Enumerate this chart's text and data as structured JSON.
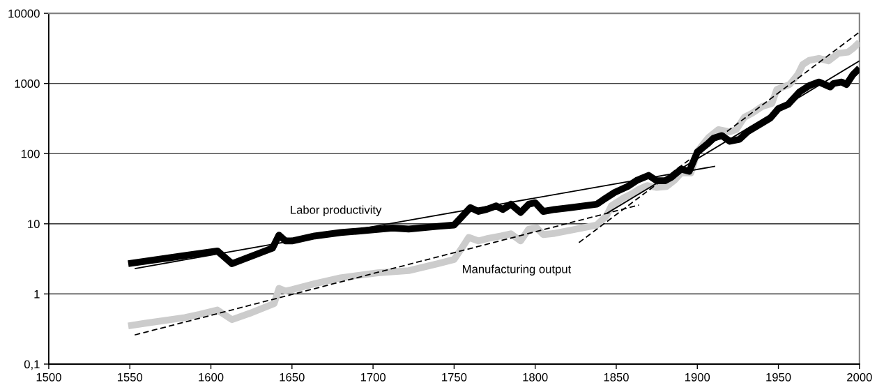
{
  "chart_data": {
    "type": "line",
    "log": "y",
    "grid": "y",
    "xlim": [
      1500,
      2000
    ],
    "xticks": [
      1500,
      1550,
      1600,
      1650,
      1700,
      1750,
      1800,
      1850,
      1900,
      1950,
      2000
    ],
    "ylim": [
      0.1,
      10000
    ],
    "yticks": [
      {
        "value": 0.1,
        "label": "0,1"
      },
      1,
      10,
      100,
      1000,
      10000
    ],
    "series": [
      {
        "name": "Manufacturing output",
        "color": "#cccccc",
        "x": [
          1549,
          1559,
          1584,
          1593,
          1604,
          1613,
          1624,
          1639,
          1642,
          1646,
          1650,
          1664,
          1680,
          1692,
          1703,
          1722,
          1740,
          1750,
          1755,
          1759,
          1765,
          1771,
          1779,
          1785,
          1791,
          1796,
          1801,
          1805,
          1812,
          1822,
          1838,
          1844,
          1847,
          1854,
          1860,
          1864,
          1869,
          1875,
          1881,
          1886,
          1890,
          1896,
          1900,
          1904,
          1907,
          1913,
          1920,
          1924,
          1929,
          1934,
          1940,
          1946,
          1949,
          1957,
          1962,
          1965,
          1969,
          1975,
          1981,
          1987,
          1993,
          1996,
          2000
        ],
        "values": [
          0.35,
          0.38,
          0.46,
          0.51,
          0.59,
          0.43,
          0.53,
          0.73,
          1.2,
          1.1,
          1.15,
          1.4,
          1.7,
          1.85,
          2.0,
          2.15,
          2.7,
          3.1,
          4.6,
          6.4,
          5.7,
          6.2,
          6.7,
          7.2,
          5.7,
          8.4,
          8.7,
          7.0,
          7.3,
          8.1,
          9.6,
          13,
          18,
          23,
          27,
          31,
          35,
          33,
          34,
          42,
          53,
          53,
          107,
          140,
          170,
          220,
          205,
          220,
          330,
          380,
          470,
          520,
          820,
          970,
          1340,
          1860,
          2140,
          2280,
          2100,
          2690,
          2800,
          3160,
          3880
        ]
      },
      {
        "name": "Labor productivity",
        "color": "#000000",
        "x": [
          1549,
          1604,
          1613,
          1638,
          1642,
          1646,
          1650,
          1664,
          1680,
          1692,
          1712,
          1722,
          1740,
          1750,
          1760,
          1765,
          1770,
          1776,
          1780,
          1785,
          1791,
          1796,
          1800,
          1805,
          1812,
          1822,
          1838,
          1842,
          1849,
          1857,
          1863,
          1870,
          1875,
          1880,
          1884,
          1890,
          1895,
          1900,
          1906,
          1910,
          1915,
          1920,
          1926,
          1931,
          1940,
          1945,
          1950,
          1956,
          1963,
          1969,
          1975,
          1982,
          1984,
          1989,
          1992,
          1996,
          2000
        ],
        "values": [
          2.7,
          4.1,
          2.7,
          4.5,
          6.9,
          5.7,
          5.7,
          6.7,
          7.5,
          7.9,
          8.7,
          8.4,
          9.2,
          9.6,
          17,
          15,
          16,
          18,
          16,
          19,
          14.5,
          19,
          20,
          15,
          16,
          17,
          19,
          22,
          28,
          34,
          42,
          49,
          41,
          41,
          46,
          60,
          56,
          105,
          136,
          166,
          181,
          150,
          160,
          205,
          273,
          321,
          438,
          504,
          757,
          929,
          1050,
          892,
          1000,
          1050,
          968,
          1340,
          1650
        ]
      },
      {
        "type": "line",
        "color": "#000000",
        "line_style": "solid",
        "x": [
          1553,
          1911
        ],
        "values": [
          2.3,
          66
        ]
      },
      {
        "type": "line",
        "color": "#000000",
        "line_style": "solid",
        "x": [
          1844,
          2000
        ],
        "values": [
          14,
          2100
        ]
      },
      {
        "type": "line",
        "color": "#000000",
        "line_style": "dashed",
        "x": [
          1553,
          1864
        ],
        "values": [
          0.26,
          18.5
        ]
      },
      {
        "type": "line",
        "color": "#000000",
        "line_style": "dashed",
        "x": [
          1827,
          2000
        ],
        "values": [
          5.4,
          5400
        ]
      }
    ]
  }
}
